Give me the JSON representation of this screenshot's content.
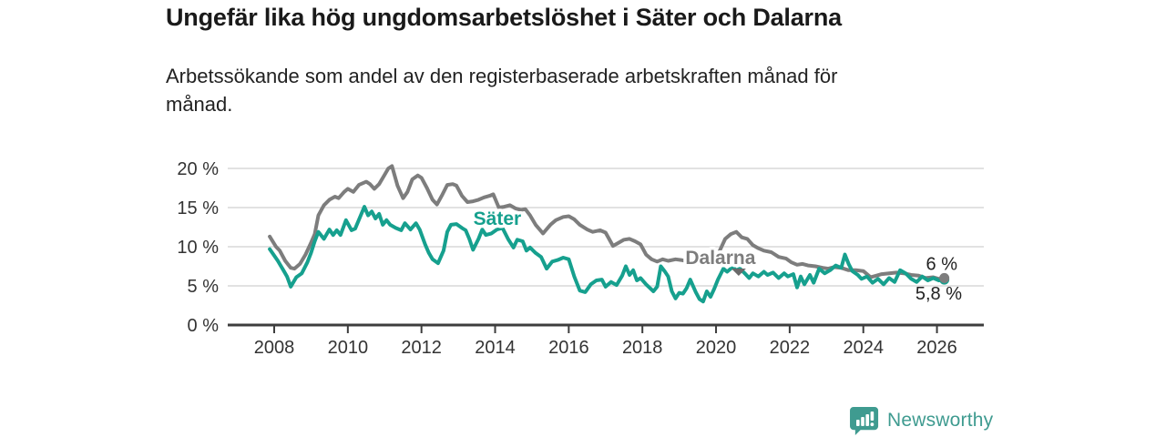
{
  "header": {
    "title": "Ungefär lika hög ungdomsarbetslöshet i Säter och Dalarna",
    "subtitle_line1": "Arbetssökande som andel av den registerbaserade arbetskraften månad för",
    "subtitle_line2": "månad."
  },
  "footer": {
    "brand": "Newsworthy"
  },
  "colors": {
    "sater": "#16a08e",
    "dalarna": "#7d7d7d",
    "grid": "#d9d9d9",
    "axis": "#3d3d3d",
    "tick_text": "#333333",
    "annotation_text": "#222222",
    "brand_teal": "#3f9b90"
  },
  "chart_data": {
    "type": "line",
    "title": "Ungefär lika hög ungdomsarbetslöshet i Säter och Dalarna",
    "subtitle": "Arbetssökande som andel av den registerbaserade arbetskraften månad för månad.",
    "unit": "%",
    "grid": true,
    "legend_position": "inline-labels",
    "x_axis": {
      "ticks": [
        2008,
        2010,
        2012,
        2014,
        2016,
        2018,
        2020,
        2022,
        2024,
        2026
      ],
      "range": [
        2006.7,
        2027.3
      ]
    },
    "y_axis": {
      "ticks": [
        0,
        5,
        10,
        15,
        20
      ],
      "suffix": " %",
      "range": [
        0,
        21.7
      ]
    },
    "series": [
      {
        "name": "Säter",
        "color": "#16a08e",
        "label_at": [
          2014.06,
          13.6
        ],
        "end_label": "5,8 %",
        "end_dot": true,
        "points": [
          [
            2007.88,
            9.7
          ],
          [
            2008.1,
            8.2
          ],
          [
            2008.25,
            7.0
          ],
          [
            2008.35,
            6.2
          ],
          [
            2008.45,
            4.9
          ],
          [
            2008.6,
            6.1
          ],
          [
            2008.75,
            6.6
          ],
          [
            2008.9,
            8.0
          ],
          [
            2009.0,
            9.2
          ],
          [
            2009.1,
            10.7
          ],
          [
            2009.2,
            11.9
          ],
          [
            2009.35,
            11.0
          ],
          [
            2009.5,
            12.2
          ],
          [
            2009.6,
            11.5
          ],
          [
            2009.7,
            12.1
          ],
          [
            2009.8,
            11.5
          ],
          [
            2009.95,
            13.4
          ],
          [
            2010.1,
            12.1
          ],
          [
            2010.2,
            12.3
          ],
          [
            2010.35,
            14.0
          ],
          [
            2010.45,
            15.1
          ],
          [
            2010.55,
            14.0
          ],
          [
            2010.65,
            14.5
          ],
          [
            2010.75,
            13.6
          ],
          [
            2010.85,
            14.2
          ],
          [
            2010.95,
            12.8
          ],
          [
            2011.05,
            13.4
          ],
          [
            2011.15,
            12.8
          ],
          [
            2011.3,
            12.4
          ],
          [
            2011.45,
            12.1
          ],
          [
            2011.55,
            13.0
          ],
          [
            2011.7,
            12.2
          ],
          [
            2011.85,
            13.0
          ],
          [
            2011.95,
            12.2
          ],
          [
            2012.1,
            10.3
          ],
          [
            2012.2,
            9.2
          ],
          [
            2012.3,
            8.4
          ],
          [
            2012.45,
            7.9
          ],
          [
            2012.6,
            9.5
          ],
          [
            2012.7,
            11.9
          ],
          [
            2012.8,
            12.8
          ],
          [
            2012.95,
            12.9
          ],
          [
            2013.1,
            12.4
          ],
          [
            2013.2,
            12.1
          ],
          [
            2013.3,
            11.0
          ],
          [
            2013.4,
            9.6
          ],
          [
            2013.55,
            11.0
          ],
          [
            2013.65,
            12.2
          ],
          [
            2013.75,
            11.5
          ],
          [
            2013.9,
            11.7
          ],
          [
            2014.05,
            12.2
          ],
          [
            2014.2,
            12.4
          ],
          [
            2014.35,
            11.0
          ],
          [
            2014.5,
            9.9
          ],
          [
            2014.6,
            10.9
          ],
          [
            2014.75,
            10.7
          ],
          [
            2014.85,
            9.5
          ],
          [
            2014.95,
            9.9
          ],
          [
            2015.1,
            9.2
          ],
          [
            2015.25,
            8.7
          ],
          [
            2015.4,
            7.2
          ],
          [
            2015.55,
            8.1
          ],
          [
            2015.7,
            8.3
          ],
          [
            2015.85,
            8.6
          ],
          [
            2016.0,
            8.4
          ],
          [
            2016.15,
            6.2
          ],
          [
            2016.3,
            4.4
          ],
          [
            2016.45,
            4.2
          ],
          [
            2016.6,
            5.2
          ],
          [
            2016.75,
            5.7
          ],
          [
            2016.9,
            5.8
          ],
          [
            2017.0,
            4.9
          ],
          [
            2017.15,
            5.5
          ],
          [
            2017.3,
            5.1
          ],
          [
            2017.45,
            6.3
          ],
          [
            2017.55,
            7.5
          ],
          [
            2017.65,
            6.4
          ],
          [
            2017.75,
            7.0
          ],
          [
            2017.85,
            5.7
          ],
          [
            2017.95,
            6.0
          ],
          [
            2018.1,
            5.2
          ],
          [
            2018.3,
            4.3
          ],
          [
            2018.4,
            4.9
          ],
          [
            2018.5,
            7.5
          ],
          [
            2018.6,
            6.9
          ],
          [
            2018.7,
            6.2
          ],
          [
            2018.8,
            4.3
          ],
          [
            2018.9,
            3.4
          ],
          [
            2019.0,
            4.1
          ],
          [
            2019.1,
            4.0
          ],
          [
            2019.2,
            4.7
          ],
          [
            2019.3,
            5.8
          ],
          [
            2019.45,
            4.2
          ],
          [
            2019.55,
            3.3
          ],
          [
            2019.65,
            3.0
          ],
          [
            2019.75,
            4.3
          ],
          [
            2019.85,
            3.6
          ],
          [
            2019.95,
            4.6
          ],
          [
            2020.05,
            5.8
          ],
          [
            2020.2,
            7.2
          ],
          [
            2020.3,
            6.8
          ],
          [
            2020.45,
            7.4
          ],
          [
            2020.55,
            7.0
          ],
          [
            2020.65,
            7.2
          ],
          [
            2020.8,
            6.5
          ],
          [
            2020.9,
            6.0
          ],
          [
            2021.0,
            6.6
          ],
          [
            2021.15,
            6.2
          ],
          [
            2021.3,
            6.8
          ],
          [
            2021.4,
            6.4
          ],
          [
            2021.55,
            6.7
          ],
          [
            2021.7,
            6.0
          ],
          [
            2021.85,
            6.6
          ],
          [
            2021.95,
            6.2
          ],
          [
            2022.1,
            6.5
          ],
          [
            2022.2,
            4.8
          ],
          [
            2022.3,
            6.2
          ],
          [
            2022.4,
            5.2
          ],
          [
            2022.55,
            6.4
          ],
          [
            2022.65,
            5.4
          ],
          [
            2022.8,
            7.2
          ],
          [
            2022.95,
            6.6
          ],
          [
            2023.1,
            7.0
          ],
          [
            2023.25,
            7.6
          ],
          [
            2023.4,
            7.3
          ],
          [
            2023.5,
            9.0
          ],
          [
            2023.6,
            7.8
          ],
          [
            2023.7,
            6.9
          ],
          [
            2023.85,
            6.4
          ],
          [
            2023.95,
            5.9
          ],
          [
            2024.1,
            6.2
          ],
          [
            2024.25,
            5.4
          ],
          [
            2024.4,
            5.9
          ],
          [
            2024.55,
            5.2
          ],
          [
            2024.7,
            6.0
          ],
          [
            2024.85,
            5.5
          ],
          [
            2025.0,
            7.0
          ],
          [
            2025.15,
            6.6
          ],
          [
            2025.3,
            5.9
          ],
          [
            2025.45,
            5.5
          ],
          [
            2025.6,
            6.2
          ],
          [
            2025.75,
            5.7
          ],
          [
            2025.9,
            6.0
          ],
          [
            2026.05,
            5.7
          ],
          [
            2026.2,
            5.8
          ]
        ]
      },
      {
        "name": "Dalarna",
        "color": "#7d7d7d",
        "label_at": [
          2020.12,
          8.6
        ],
        "label_pointer": true,
        "end_label": "6 %",
        "end_dot": true,
        "points": [
          [
            2007.88,
            11.3
          ],
          [
            2008.05,
            10.0
          ],
          [
            2008.15,
            9.5
          ],
          [
            2008.3,
            8.2
          ],
          [
            2008.45,
            7.3
          ],
          [
            2008.55,
            7.2
          ],
          [
            2008.7,
            7.8
          ],
          [
            2008.85,
            9.0
          ],
          [
            2009.0,
            10.5
          ],
          [
            2009.1,
            11.6
          ],
          [
            2009.2,
            14.0
          ],
          [
            2009.35,
            15.3
          ],
          [
            2009.5,
            16.0
          ],
          [
            2009.65,
            16.4
          ],
          [
            2009.75,
            16.2
          ],
          [
            2009.9,
            17.0
          ],
          [
            2010.0,
            17.4
          ],
          [
            2010.15,
            17.0
          ],
          [
            2010.3,
            17.9
          ],
          [
            2010.5,
            18.3
          ],
          [
            2010.6,
            18.0
          ],
          [
            2010.72,
            17.4
          ],
          [
            2010.85,
            18.0
          ],
          [
            2011.0,
            19.2
          ],
          [
            2011.1,
            20.0
          ],
          [
            2011.2,
            20.3
          ],
          [
            2011.35,
            17.8
          ],
          [
            2011.5,
            16.2
          ],
          [
            2011.62,
            17.0
          ],
          [
            2011.75,
            18.6
          ],
          [
            2011.9,
            19.1
          ],
          [
            2012.0,
            18.8
          ],
          [
            2012.15,
            17.5
          ],
          [
            2012.3,
            16.0
          ],
          [
            2012.42,
            15.4
          ],
          [
            2012.55,
            16.5
          ],
          [
            2012.7,
            17.9
          ],
          [
            2012.85,
            18.0
          ],
          [
            2012.95,
            17.8
          ],
          [
            2013.1,
            16.5
          ],
          [
            2013.25,
            15.7
          ],
          [
            2013.4,
            15.8
          ],
          [
            2013.55,
            16.0
          ],
          [
            2013.7,
            16.3
          ],
          [
            2013.85,
            16.5
          ],
          [
            2013.95,
            16.7
          ],
          [
            2014.1,
            15.0
          ],
          [
            2014.25,
            15.1
          ],
          [
            2014.4,
            15.3
          ],
          [
            2014.55,
            14.9
          ],
          [
            2014.7,
            14.7
          ],
          [
            2014.82,
            14.8
          ],
          [
            2014.95,
            14.0
          ],
          [
            2015.1,
            12.8
          ],
          [
            2015.3,
            11.7
          ],
          [
            2015.5,
            12.8
          ],
          [
            2015.65,
            13.4
          ],
          [
            2015.85,
            13.8
          ],
          [
            2016.0,
            13.9
          ],
          [
            2016.15,
            13.5
          ],
          [
            2016.3,
            12.8
          ],
          [
            2016.5,
            12.2
          ],
          [
            2016.65,
            11.9
          ],
          [
            2016.85,
            12.1
          ],
          [
            2017.0,
            11.8
          ],
          [
            2017.2,
            10.1
          ],
          [
            2017.35,
            10.5
          ],
          [
            2017.5,
            10.9
          ],
          [
            2017.65,
            11.0
          ],
          [
            2017.8,
            10.7
          ],
          [
            2017.95,
            10.3
          ],
          [
            2018.1,
            9.0
          ],
          [
            2018.25,
            8.4
          ],
          [
            2018.4,
            8.1
          ],
          [
            2018.55,
            8.4
          ],
          [
            2018.7,
            8.2
          ],
          [
            2018.9,
            8.4
          ],
          [
            2019.05,
            8.3
          ],
          [
            2019.25,
            8.1
          ],
          [
            2019.45,
            7.9
          ],
          [
            2019.65,
            7.8
          ],
          [
            2019.85,
            7.7
          ],
          [
            2020.0,
            8.2
          ],
          [
            2020.1,
            9.5
          ],
          [
            2020.25,
            11.0
          ],
          [
            2020.4,
            11.6
          ],
          [
            2020.55,
            11.9
          ],
          [
            2020.7,
            11.2
          ],
          [
            2020.85,
            11.0
          ],
          [
            2021.0,
            10.2
          ],
          [
            2021.15,
            9.8
          ],
          [
            2021.3,
            9.5
          ],
          [
            2021.5,
            9.3
          ],
          [
            2021.7,
            8.7
          ],
          [
            2021.9,
            8.5
          ],
          [
            2022.05,
            8.0
          ],
          [
            2022.2,
            7.7
          ],
          [
            2022.35,
            7.8
          ],
          [
            2022.5,
            7.6
          ],
          [
            2022.7,
            7.5
          ],
          [
            2022.9,
            7.3
          ],
          [
            2023.05,
            7.2
          ],
          [
            2023.2,
            7.4
          ],
          [
            2023.4,
            7.3
          ],
          [
            2023.6,
            7.0
          ],
          [
            2023.8,
            7.0
          ],
          [
            2024.0,
            6.9
          ],
          [
            2024.2,
            6.1
          ],
          [
            2024.35,
            6.3
          ],
          [
            2024.5,
            6.5
          ],
          [
            2024.7,
            6.6
          ],
          [
            2024.9,
            6.7
          ],
          [
            2025.1,
            6.6
          ],
          [
            2025.3,
            6.4
          ],
          [
            2025.5,
            6.3
          ],
          [
            2025.7,
            6.0
          ],
          [
            2025.9,
            6.1
          ],
          [
            2026.05,
            5.9
          ],
          [
            2026.2,
            6.0
          ]
        ]
      }
    ]
  }
}
